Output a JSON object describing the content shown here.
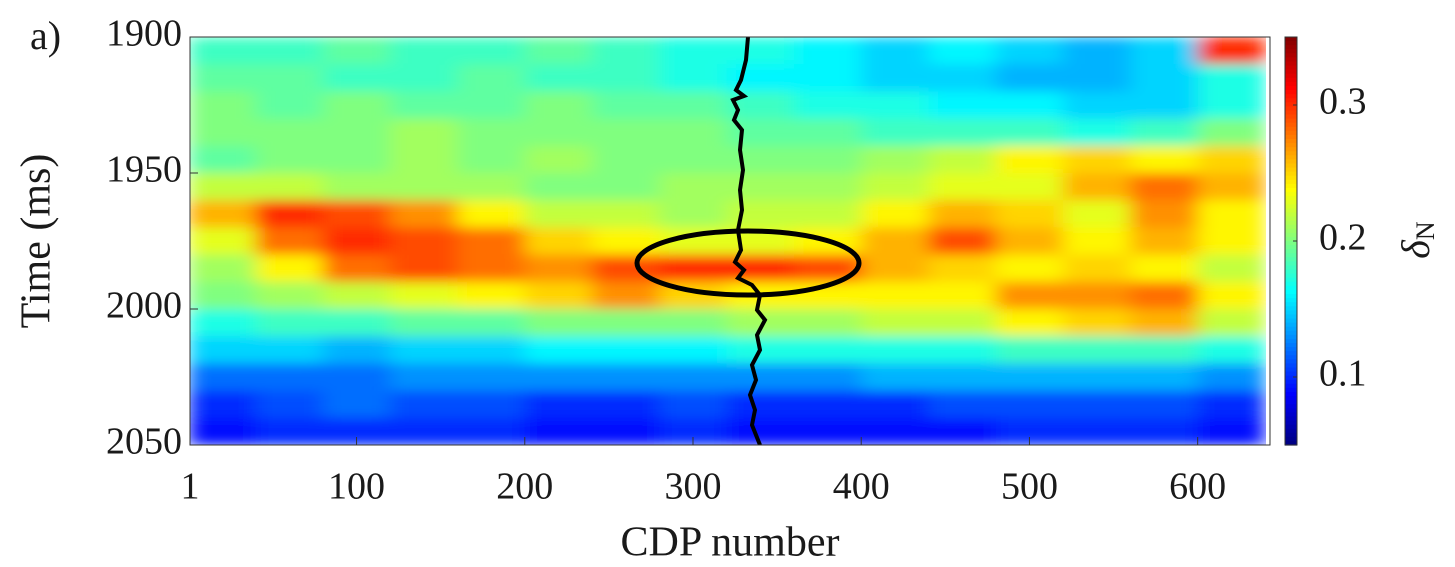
{
  "chart_data": {
    "type": "heatmap",
    "panel_label": "a)",
    "xlabel": "CDP number",
    "ylabel": "Time (ms)",
    "colorbar_label": {
      "symbol": "δ",
      "subscript": "N"
    },
    "colormap": "jet",
    "xlim": [
      1,
      643
    ],
    "xticks": [
      1,
      100,
      200,
      300,
      400,
      500,
      600
    ],
    "ylim": [
      1900,
      2050
    ],
    "yticks": [
      1900,
      1950,
      2000,
      2050
    ],
    "y_reversed": true,
    "clim": [
      0.05,
      0.35
    ],
    "cticks": [
      0.1,
      0.2,
      0.3
    ],
    "x": [
      20,
      60,
      100,
      140,
      180,
      220,
      260,
      300,
      340,
      380,
      420,
      460,
      500,
      540,
      580,
      620
    ],
    "y": [
      1905,
      1915,
      1925,
      1935,
      1945,
      1955,
      1965,
      1975,
      1985,
      1995,
      2005,
      2015,
      2025,
      2035,
      2045
    ],
    "z": [
      [
        0.18,
        0.18,
        0.19,
        0.18,
        0.18,
        0.19,
        0.18,
        0.17,
        0.17,
        0.16,
        0.15,
        0.16,
        0.15,
        0.14,
        0.15,
        0.3
      ],
      [
        0.19,
        0.19,
        0.18,
        0.18,
        0.19,
        0.18,
        0.18,
        0.17,
        0.16,
        0.16,
        0.15,
        0.15,
        0.14,
        0.14,
        0.15,
        0.17
      ],
      [
        0.2,
        0.19,
        0.2,
        0.19,
        0.19,
        0.2,
        0.19,
        0.19,
        0.18,
        0.17,
        0.17,
        0.16,
        0.16,
        0.15,
        0.15,
        0.17
      ],
      [
        0.2,
        0.2,
        0.2,
        0.21,
        0.2,
        0.2,
        0.2,
        0.2,
        0.19,
        0.19,
        0.18,
        0.18,
        0.18,
        0.17,
        0.18,
        0.2
      ],
      [
        0.19,
        0.2,
        0.2,
        0.21,
        0.2,
        0.21,
        0.2,
        0.2,
        0.2,
        0.2,
        0.21,
        0.22,
        0.24,
        0.25,
        0.24,
        0.25
      ],
      [
        0.22,
        0.22,
        0.21,
        0.21,
        0.21,
        0.2,
        0.2,
        0.21,
        0.21,
        0.21,
        0.22,
        0.23,
        0.23,
        0.26,
        0.28,
        0.26
      ],
      [
        0.26,
        0.3,
        0.29,
        0.27,
        0.24,
        0.22,
        0.22,
        0.21,
        0.22,
        0.22,
        0.24,
        0.26,
        0.25,
        0.23,
        0.27,
        0.24
      ],
      [
        0.23,
        0.28,
        0.3,
        0.29,
        0.28,
        0.25,
        0.24,
        0.23,
        0.23,
        0.24,
        0.26,
        0.29,
        0.26,
        0.24,
        0.26,
        0.24
      ],
      [
        0.21,
        0.24,
        0.28,
        0.29,
        0.28,
        0.27,
        0.29,
        0.3,
        0.3,
        0.29,
        0.26,
        0.25,
        0.24,
        0.25,
        0.24,
        0.22
      ],
      [
        0.2,
        0.21,
        0.22,
        0.23,
        0.24,
        0.25,
        0.27,
        0.25,
        0.24,
        0.24,
        0.24,
        0.24,
        0.27,
        0.27,
        0.28,
        0.24
      ],
      [
        0.17,
        0.18,
        0.18,
        0.19,
        0.19,
        0.2,
        0.2,
        0.2,
        0.21,
        0.21,
        0.22,
        0.22,
        0.24,
        0.25,
        0.26,
        0.22
      ],
      [
        0.15,
        0.15,
        0.14,
        0.15,
        0.15,
        0.16,
        0.16,
        0.16,
        0.17,
        0.17,
        0.17,
        0.17,
        0.18,
        0.18,
        0.18,
        0.17
      ],
      [
        0.12,
        0.12,
        0.12,
        0.13,
        0.13,
        0.13,
        0.13,
        0.13,
        0.13,
        0.13,
        0.14,
        0.14,
        0.14,
        0.14,
        0.14,
        0.13
      ],
      [
        0.1,
        0.11,
        0.12,
        0.11,
        0.11,
        0.1,
        0.1,
        0.11,
        0.1,
        0.1,
        0.1,
        0.11,
        0.11,
        0.11,
        0.11,
        0.1
      ],
      [
        0.09,
        0.1,
        0.1,
        0.1,
        0.1,
        0.09,
        0.09,
        0.1,
        0.09,
        0.09,
        0.09,
        0.09,
        0.1,
        0.1,
        0.1,
        0.09
      ]
    ]
  }
}
